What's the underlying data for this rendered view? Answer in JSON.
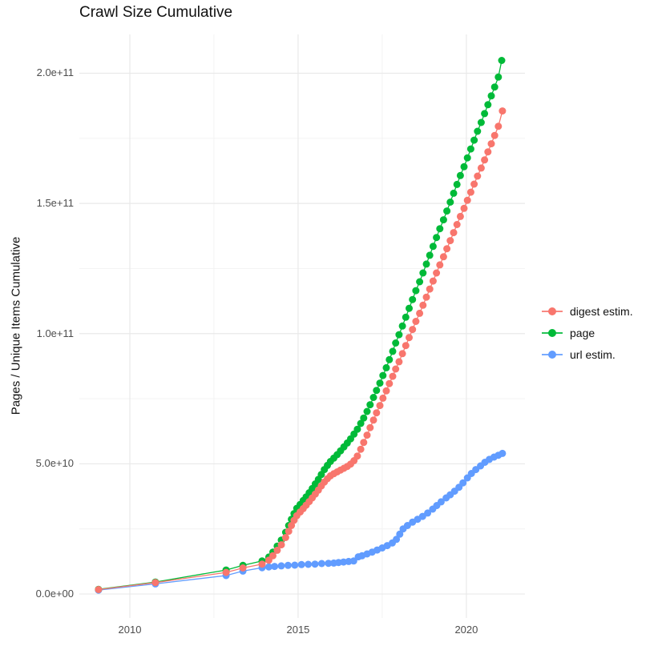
{
  "title": "Crawl Size Cumulative",
  "chart_data": {
    "type": "line",
    "markers": true,
    "title": "Crawl Size Cumulative",
    "xlabel": "",
    "ylabel": "Pages / Unique Items Cumulative",
    "y_value_unit": "1e9 items (values below are billions)",
    "xlim": [
      2008.5,
      2021.74
    ],
    "ylim_e9": [
      -9.2,
      214.9
    ],
    "x_ticks": [
      2010,
      2015,
      2020
    ],
    "x_tick_labels": [
      "2010",
      "2015",
      "2020"
    ],
    "x_minor_ticks": [
      2012.5,
      2017.5
    ],
    "y_ticks_e9": [
      0,
      50,
      100,
      150,
      200
    ],
    "y_tick_labels": [
      "0.0e+00",
      "5.0e+10",
      "1.0e+11",
      "1.5e+11",
      "2.0e+11"
    ],
    "y_minor_ticks_e9": [
      25,
      75,
      125,
      175
    ],
    "grid": "major+minor",
    "legend_position": "right",
    "series": [
      {
        "id": "digest-estim",
        "name": "digest estim.",
        "color": "#F8766D",
        "points": [
          [
            2009.07,
            1.7
          ],
          [
            2010.76,
            4.4
          ],
          [
            2012.86,
            8.3
          ],
          [
            2013.36,
            10.0
          ],
          [
            2013.93,
            11.5
          ],
          [
            2014.13,
            13.0
          ],
          [
            2014.25,
            14.7
          ],
          [
            2014.38,
            16.8
          ],
          [
            2014.5,
            18.9
          ],
          [
            2014.63,
            21.7
          ],
          [
            2014.72,
            24.1
          ],
          [
            2014.8,
            26.3
          ],
          [
            2014.88,
            28.3
          ],
          [
            2014.96,
            30.1
          ],
          [
            2015.06,
            31.5
          ],
          [
            2015.15,
            32.8
          ],
          [
            2015.24,
            34.1
          ],
          [
            2015.33,
            35.5
          ],
          [
            2015.42,
            36.9
          ],
          [
            2015.51,
            38.4
          ],
          [
            2015.6,
            39.9
          ],
          [
            2015.69,
            41.5
          ],
          [
            2015.78,
            43.0
          ],
          [
            2015.87,
            44.3
          ],
          [
            2015.96,
            45.4
          ],
          [
            2016.06,
            46.2
          ],
          [
            2016.16,
            46.9
          ],
          [
            2016.26,
            47.6
          ],
          [
            2016.36,
            48.3
          ],
          [
            2016.46,
            49.0
          ],
          [
            2016.56,
            49.9
          ],
          [
            2016.66,
            51.2
          ],
          [
            2016.76,
            53.0
          ],
          [
            2016.86,
            55.6
          ],
          [
            2016.95,
            58.2
          ],
          [
            2017.05,
            61.0
          ],
          [
            2017.14,
            63.9
          ],
          [
            2017.24,
            66.8
          ],
          [
            2017.33,
            69.6
          ],
          [
            2017.43,
            72.4
          ],
          [
            2017.52,
            75.2
          ],
          [
            2017.62,
            78.0
          ],
          [
            2017.71,
            80.8
          ],
          [
            2017.81,
            83.6
          ],
          [
            2017.9,
            86.4
          ],
          [
            2018.0,
            89.2
          ],
          [
            2018.1,
            92.3
          ],
          [
            2018.2,
            95.4
          ],
          [
            2018.3,
            98.5
          ],
          [
            2018.4,
            101.6
          ],
          [
            2018.5,
            104.7
          ],
          [
            2018.61,
            107.8
          ],
          [
            2018.71,
            110.9
          ],
          [
            2018.81,
            114.0
          ],
          [
            2018.91,
            117.1
          ],
          [
            2019.01,
            120.2
          ],
          [
            2019.11,
            123.3
          ],
          [
            2019.21,
            126.4
          ],
          [
            2019.32,
            129.5
          ],
          [
            2019.42,
            132.6
          ],
          [
            2019.52,
            135.7
          ],
          [
            2019.62,
            138.8
          ],
          [
            2019.72,
            141.9
          ],
          [
            2019.82,
            145.0
          ],
          [
            2019.93,
            148.1
          ],
          [
            2020.03,
            151.2
          ],
          [
            2020.13,
            154.3
          ],
          [
            2020.23,
            157.4
          ],
          [
            2020.33,
            160.5
          ],
          [
            2020.44,
            163.6
          ],
          [
            2020.54,
            166.7
          ],
          [
            2020.64,
            169.8
          ],
          [
            2020.74,
            172.9
          ],
          [
            2020.84,
            176.1
          ],
          [
            2020.95,
            179.6
          ],
          [
            2021.07,
            185.5
          ]
        ]
      },
      {
        "id": "page",
        "name": "page",
        "color": "#00BA38",
        "points": [
          [
            2009.07,
            1.8
          ],
          [
            2010.76,
            4.6
          ],
          [
            2012.86,
            9.2
          ],
          [
            2013.36,
            11.0
          ],
          [
            2013.93,
            12.7
          ],
          [
            2014.13,
            14.2
          ],
          [
            2014.25,
            16.1
          ],
          [
            2014.38,
            18.4
          ],
          [
            2014.5,
            20.7
          ],
          [
            2014.63,
            23.7
          ],
          [
            2014.72,
            26.3
          ],
          [
            2014.8,
            28.7
          ],
          [
            2014.88,
            30.9
          ],
          [
            2014.96,
            32.9
          ],
          [
            2015.06,
            34.4
          ],
          [
            2015.15,
            35.9
          ],
          [
            2015.24,
            37.3
          ],
          [
            2015.33,
            38.9
          ],
          [
            2015.42,
            40.5
          ],
          [
            2015.51,
            42.3
          ],
          [
            2015.6,
            44.0
          ],
          [
            2015.69,
            45.9
          ],
          [
            2015.78,
            47.8
          ],
          [
            2015.87,
            49.4
          ],
          [
            2015.96,
            50.9
          ],
          [
            2016.06,
            52.2
          ],
          [
            2016.16,
            53.5
          ],
          [
            2016.26,
            55.0
          ],
          [
            2016.36,
            56.5
          ],
          [
            2016.46,
            58.0
          ],
          [
            2016.56,
            59.6
          ],
          [
            2016.66,
            61.4
          ],
          [
            2016.76,
            63.3
          ],
          [
            2016.86,
            65.5
          ],
          [
            2016.95,
            67.6
          ],
          [
            2017.05,
            70.1
          ],
          [
            2017.14,
            72.7
          ],
          [
            2017.24,
            75.5
          ],
          [
            2017.33,
            78.2
          ],
          [
            2017.43,
            81.0
          ],
          [
            2017.52,
            83.9
          ],
          [
            2017.62,
            86.9
          ],
          [
            2017.71,
            90.0
          ],
          [
            2017.81,
            93.2
          ],
          [
            2017.9,
            96.4
          ],
          [
            2018.0,
            99.6
          ],
          [
            2018.1,
            102.9
          ],
          [
            2018.2,
            106.3
          ],
          [
            2018.3,
            109.7
          ],
          [
            2018.4,
            113.1
          ],
          [
            2018.5,
            116.5
          ],
          [
            2018.61,
            119.9
          ],
          [
            2018.71,
            123.3
          ],
          [
            2018.81,
            126.7
          ],
          [
            2018.91,
            130.1
          ],
          [
            2019.01,
            133.5
          ],
          [
            2019.11,
            136.9
          ],
          [
            2019.21,
            140.3
          ],
          [
            2019.32,
            143.7
          ],
          [
            2019.42,
            147.1
          ],
          [
            2019.52,
            150.5
          ],
          [
            2019.62,
            153.9
          ],
          [
            2019.72,
            157.3
          ],
          [
            2019.82,
            160.7
          ],
          [
            2019.93,
            164.1
          ],
          [
            2020.03,
            167.5
          ],
          [
            2020.13,
            170.9
          ],
          [
            2020.23,
            174.3
          ],
          [
            2020.33,
            177.7
          ],
          [
            2020.44,
            181.1
          ],
          [
            2020.54,
            184.5
          ],
          [
            2020.64,
            187.9
          ],
          [
            2020.74,
            191.3
          ],
          [
            2020.84,
            194.7
          ],
          [
            2020.95,
            198.5
          ],
          [
            2021.05,
            204.9
          ]
        ]
      },
      {
        "id": "url-estim",
        "name": "url estim.",
        "color": "#619CFF",
        "points": [
          [
            2009.07,
            1.5
          ],
          [
            2010.76,
            3.9
          ],
          [
            2012.86,
            7.1
          ],
          [
            2013.36,
            8.8
          ],
          [
            2013.93,
            10.1
          ],
          [
            2014.13,
            10.4
          ],
          [
            2014.3,
            10.6
          ],
          [
            2014.5,
            10.8
          ],
          [
            2014.7,
            11.0
          ],
          [
            2014.9,
            11.1
          ],
          [
            2015.1,
            11.3
          ],
          [
            2015.3,
            11.4
          ],
          [
            2015.5,
            11.5
          ],
          [
            2015.7,
            11.7
          ],
          [
            2015.9,
            11.8
          ],
          [
            2016.06,
            11.9
          ],
          [
            2016.2,
            12.1
          ],
          [
            2016.35,
            12.3
          ],
          [
            2016.5,
            12.5
          ],
          [
            2016.65,
            12.7
          ],
          [
            2016.79,
            14.3
          ],
          [
            2016.9,
            14.7
          ],
          [
            2017.05,
            15.4
          ],
          [
            2017.2,
            16.1
          ],
          [
            2017.35,
            16.9
          ],
          [
            2017.5,
            17.7
          ],
          [
            2017.65,
            18.6
          ],
          [
            2017.8,
            19.6
          ],
          [
            2017.92,
            21.0
          ],
          [
            2018.02,
            23.0
          ],
          [
            2018.12,
            25.0
          ],
          [
            2018.25,
            26.3
          ],
          [
            2018.4,
            27.6
          ],
          [
            2018.55,
            28.7
          ],
          [
            2018.7,
            29.8
          ],
          [
            2018.85,
            31.1
          ],
          [
            2019.0,
            32.6
          ],
          [
            2019.12,
            34.0
          ],
          [
            2019.25,
            35.4
          ],
          [
            2019.4,
            36.9
          ],
          [
            2019.52,
            38.1
          ],
          [
            2019.65,
            39.5
          ],
          [
            2019.78,
            41.0
          ],
          [
            2019.9,
            42.7
          ],
          [
            2020.03,
            44.6
          ],
          [
            2020.15,
            46.3
          ],
          [
            2020.28,
            47.8
          ],
          [
            2020.42,
            49.2
          ],
          [
            2020.55,
            50.6
          ],
          [
            2020.68,
            51.7
          ],
          [
            2020.82,
            52.6
          ],
          [
            2020.95,
            53.3
          ],
          [
            2021.07,
            54.0
          ]
        ]
      }
    ]
  },
  "style": {
    "background": "#ffffff",
    "grid_major_color": "#e9e9e9",
    "grid_minor_color": "#f2f2f2",
    "tick_label_color": "#4d4d4d",
    "text_color": "#111111"
  }
}
